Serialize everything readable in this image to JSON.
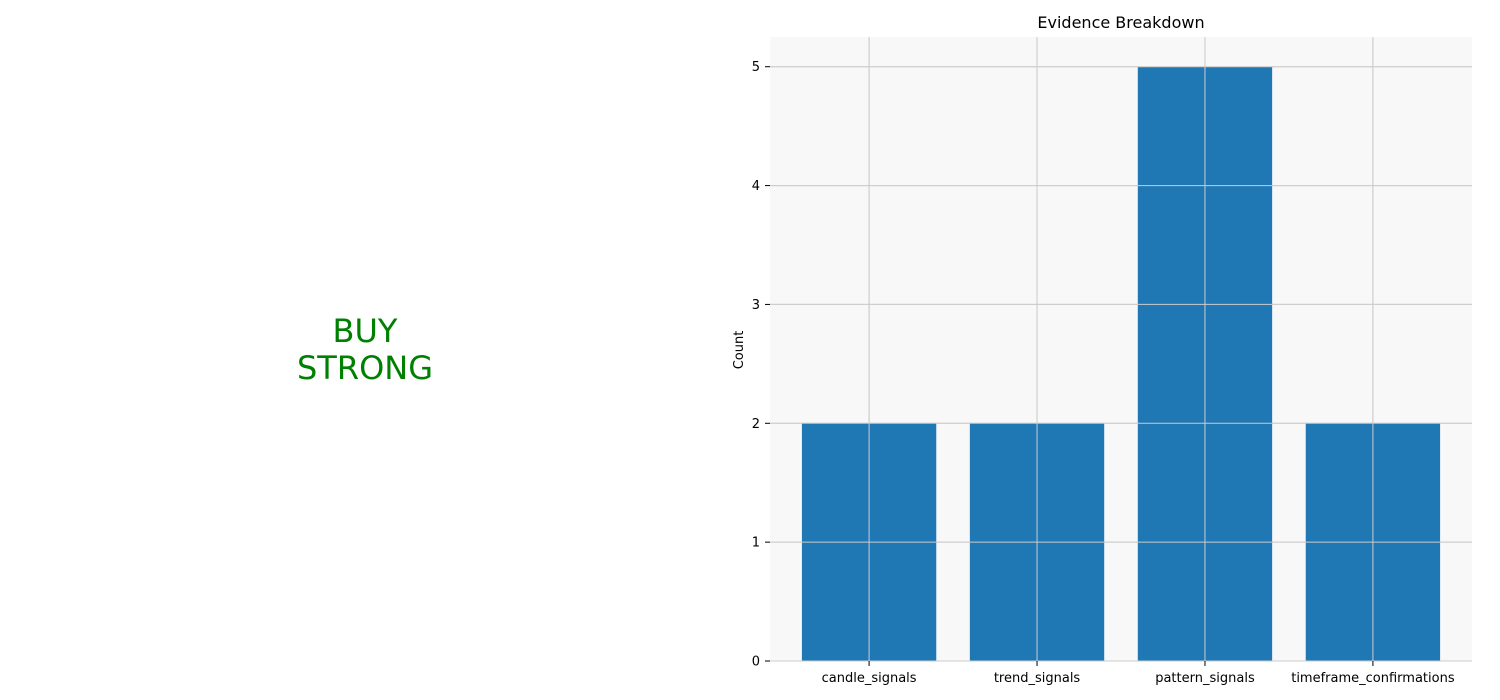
{
  "signal": {
    "action": "BUY",
    "strength": "STRONG",
    "color": "#008000"
  },
  "chart_data": {
    "type": "bar",
    "title": "Evidence Breakdown",
    "xlabel": "",
    "ylabel": "Count",
    "categories": [
      "candle_signals",
      "trend_signals",
      "pattern_signals",
      "timeframe_confirmations"
    ],
    "values": [
      2,
      2,
      5,
      2
    ],
    "ylim": [
      0,
      5.25
    ],
    "yticks": [
      0,
      1,
      2,
      3,
      4,
      5
    ],
    "grid": true,
    "bar_color": "#1f77b4",
    "background_color": "#f8f8f8",
    "grid_color": "#cccccc"
  }
}
